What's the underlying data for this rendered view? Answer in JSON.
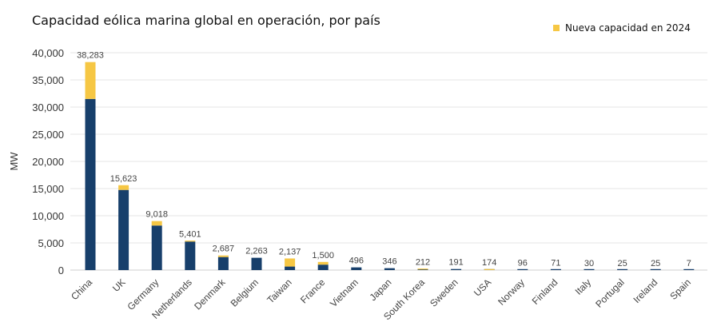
{
  "chart_data": {
    "type": "bar",
    "stacked": true,
    "title": "Capacidad eólica marina global en operación, por país",
    "ylabel": "MW",
    "xlabel": "",
    "ylim": [
      0,
      40000
    ],
    "yticks": [
      0,
      5000,
      10000,
      15000,
      20000,
      25000,
      30000,
      35000,
      40000
    ],
    "ytick_labels": [
      "0",
      "5,000",
      "10,000",
      "15,000",
      "20,000",
      "25,000",
      "30,000",
      "35,000",
      "40,000"
    ],
    "grid": true,
    "legend_position": "top-right",
    "categories": [
      "China",
      "UK",
      "Germany",
      "Netherlands",
      "Denmark",
      "Belgium",
      "Taiwan",
      "France",
      "Vietnam",
      "Japan",
      "South Korea",
      "Sweden",
      "USA",
      "Norway",
      "Finland",
      "Italy",
      "Portugal",
      "Ireland",
      "Spain"
    ],
    "totals": [
      38283,
      15623,
      9018,
      5401,
      2687,
      2263,
      2137,
      1500,
      496,
      346,
      212,
      191,
      174,
      96,
      71,
      30,
      25,
      25,
      7
    ],
    "total_labels": [
      "38,283",
      "15,623",
      "9,018",
      "5,401",
      "2,687",
      "2,263",
      "2,137",
      "1,500",
      "496",
      "346",
      "212",
      "191",
      "174",
      "96",
      "71",
      "30",
      "25",
      "25",
      "7"
    ],
    "series": [
      {
        "values": [
          31500,
          14750,
          8200,
          5250,
          2400,
          2263,
          650,
          1000,
          496,
          346,
          100,
          191,
          10,
          96,
          71,
          30,
          25,
          25,
          7
        ],
        "color": "#173f6b"
      },
      {
        "name": "Nueva capacidad en 2024",
        "values": [
          6783,
          873,
          818,
          151,
          287,
          0,
          1487,
          500,
          0,
          0,
          112,
          0,
          164,
          0,
          0,
          0,
          0,
          0,
          0
        ],
        "color": "#f6c744"
      }
    ]
  }
}
